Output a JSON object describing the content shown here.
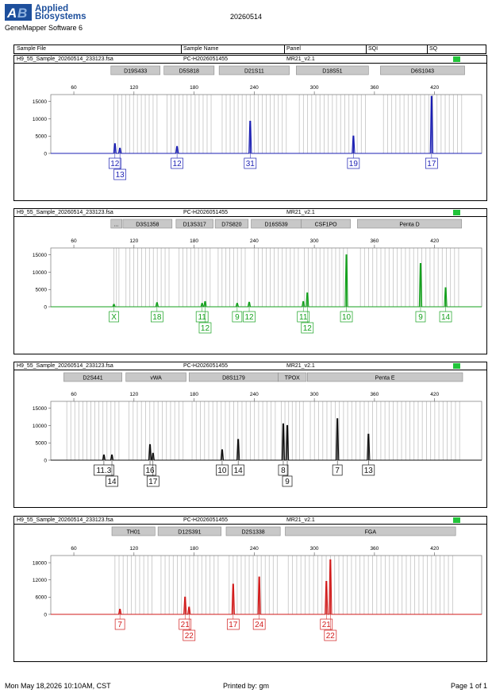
{
  "header": {
    "company": "Applied Biosystems",
    "company_line1": "Applied",
    "company_line2": "Biosystems",
    "software": "GeneMapper Software 6",
    "run_date": "20260514"
  },
  "columns": [
    "Sample File",
    "Sample Name",
    "Panel",
    "SQI",
    "SQ"
  ],
  "footer": {
    "timestamp": "Mon May 18,2026 10:10AM, CST",
    "printed_by": "Printed by: gm",
    "page": "Page 1 of 1"
  },
  "colors": {
    "blue": "#1b1fb3",
    "green": "#15a11e",
    "black": "#111111",
    "red": "#d11a1a",
    "quality": "#22c43a"
  },
  "chart_data": [
    {
      "type": "line",
      "dye": "blue",
      "sample_file": "H9_55_Sample_20260514_233123.fsa",
      "sample_name": "PC-H2026051455",
      "panel": "MR21_v2.1",
      "x_ticks": [
        60,
        120,
        180,
        240,
        300,
        360,
        420
      ],
      "y_ticks": [
        0,
        5000,
        10000,
        15000
      ],
      "ylim": [
        0,
        17000
      ],
      "loci": [
        {
          "name": "D19S433",
          "from": 97,
          "to": 146
        },
        {
          "name": "D5S818",
          "from": 150,
          "to": 200
        },
        {
          "name": "D21S11",
          "from": 205,
          "to": 275
        },
        {
          "name": "D18S51",
          "from": 282,
          "to": 354
        },
        {
          "name": "D6S1043",
          "from": 366,
          "to": 450
        }
      ],
      "peaks": [
        {
          "x": 101,
          "h": 2800,
          "label": "12",
          "row": 0
        },
        {
          "x": 106,
          "h": 1500,
          "label": "13",
          "row": 1
        },
        {
          "x": 163,
          "h": 2000,
          "label": "12",
          "row": 0
        },
        {
          "x": 236,
          "h": 9300,
          "label": "31",
          "row": 0
        },
        {
          "x": 339,
          "h": 5000,
          "label": "19",
          "row": 0
        },
        {
          "x": 417,
          "h": 16500,
          "label": "17",
          "row": 0
        }
      ]
    },
    {
      "type": "line",
      "dye": "green",
      "sample_file": "H9_55_Sample_20260514_233123.fsa",
      "sample_name": "PC-H2026051455",
      "panel": "MR21_v2.1",
      "x_ticks": [
        60,
        120,
        180,
        240,
        300,
        360,
        420
      ],
      "y_ticks": [
        0,
        5000,
        10000,
        15000
      ],
      "ylim": [
        0,
        17000
      ],
      "loci": [
        {
          "name": "...",
          "from": 97,
          "to": 108
        },
        {
          "name": "D3S1358",
          "from": 109,
          "to": 158
        },
        {
          "name": "D13S317",
          "from": 162,
          "to": 199
        },
        {
          "name": "D7S820",
          "from": 201,
          "to": 234
        },
        {
          "name": "D16S539",
          "from": 237,
          "to": 287
        },
        {
          "name": "CSF1PO",
          "from": 287,
          "to": 336
        },
        {
          "name": "Penta D",
          "from": 343,
          "to": 447
        }
      ],
      "peaks": [
        {
          "x": 100,
          "h": 700,
          "label": "X",
          "row": 0
        },
        {
          "x": 143,
          "h": 1200,
          "label": "18",
          "row": 0
        },
        {
          "x": 188,
          "h": 1000,
          "label": "11",
          "row": 0
        },
        {
          "x": 191,
          "h": 1500,
          "label": "12",
          "row": 1
        },
        {
          "x": 223,
          "h": 1000,
          "label": "9",
          "row": 0
        },
        {
          "x": 235,
          "h": 1300,
          "label": "12",
          "row": 0
        },
        {
          "x": 289,
          "h": 1500,
          "label": "11",
          "row": 0
        },
        {
          "x": 293,
          "h": 4000,
          "label": "12",
          "row": 1
        },
        {
          "x": 332,
          "h": 15000,
          "label": "10",
          "row": 0
        },
        {
          "x": 406,
          "h": 12500,
          "label": "9",
          "row": 0
        },
        {
          "x": 431,
          "h": 5500,
          "label": "14",
          "row": 0
        }
      ]
    },
    {
      "type": "line",
      "dye": "black",
      "sample_file": "H9_55_Sample_20260514_233123.fsa",
      "sample_name": "PC-H2026051455",
      "panel": "MR21_v2.1",
      "x_ticks": [
        60,
        120,
        180,
        240,
        300,
        360,
        420
      ],
      "y_ticks": [
        0,
        5000,
        10000,
        15000
      ],
      "ylim": [
        0,
        17000
      ],
      "loci": [
        {
          "name": "D2S441",
          "from": 50,
          "to": 108
        },
        {
          "name": "vWA",
          "from": 112,
          "to": 172
        },
        {
          "name": "D8S1179",
          "from": 175,
          "to": 264
        },
        {
          "name": "TPOX",
          "from": 264,
          "to": 292
        },
        {
          "name": "Penta E",
          "from": 293,
          "to": 448
        }
      ],
      "peaks": [
        {
          "x": 90,
          "h": 1500,
          "label": "11.3",
          "row": 0
        },
        {
          "x": 98,
          "h": 1500,
          "label": "14",
          "row": 1
        },
        {
          "x": 136,
          "h": 4500,
          "label": "16",
          "row": 0
        },
        {
          "x": 139,
          "h": 2000,
          "label": "17",
          "row": 1
        },
        {
          "x": 208,
          "h": 3000,
          "label": "10",
          "row": 0
        },
        {
          "x": 224,
          "h": 6000,
          "label": "14",
          "row": 0
        },
        {
          "x": 269,
          "h": 10500,
          "label": "8",
          "row": 0
        },
        {
          "x": 273,
          "h": 10000,
          "label": "9",
          "row": 1
        },
        {
          "x": 323,
          "h": 12000,
          "label": "7",
          "row": 0
        },
        {
          "x": 354,
          "h": 7500,
          "label": "13",
          "row": 0
        }
      ]
    },
    {
      "type": "line",
      "dye": "red",
      "sample_file": "H9_55_Sample_20260514_233123.fsa",
      "sample_name": "PC-H2026051455",
      "panel": "MR21_v2.1",
      "x_ticks": [
        60,
        120,
        180,
        240,
        300,
        360,
        420
      ],
      "y_ticks": [
        0,
        6000,
        12000,
        18000
      ],
      "ylim": [
        0,
        20500
      ],
      "loci": [
        {
          "name": "TH01",
          "from": 98,
          "to": 141
        },
        {
          "name": "D12S391",
          "from": 144,
          "to": 207
        },
        {
          "name": "D2S1338",
          "from": 212,
          "to": 266
        },
        {
          "name": "FGA",
          "from": 271,
          "to": 441
        }
      ],
      "peaks": [
        {
          "x": 106,
          "h": 1800,
          "label": "7",
          "row": 0
        },
        {
          "x": 171,
          "h": 6000,
          "label": "21",
          "row": 0
        },
        {
          "x": 175,
          "h": 2500,
          "label": "22",
          "row": 1
        },
        {
          "x": 219,
          "h": 10500,
          "label": "17",
          "row": 0
        },
        {
          "x": 245,
          "h": 13000,
          "label": "24",
          "row": 0
        },
        {
          "x": 312,
          "h": 11500,
          "label": "21",
          "row": 0
        },
        {
          "x": 316,
          "h": 19000,
          "label": "22",
          "row": 1
        }
      ]
    }
  ]
}
